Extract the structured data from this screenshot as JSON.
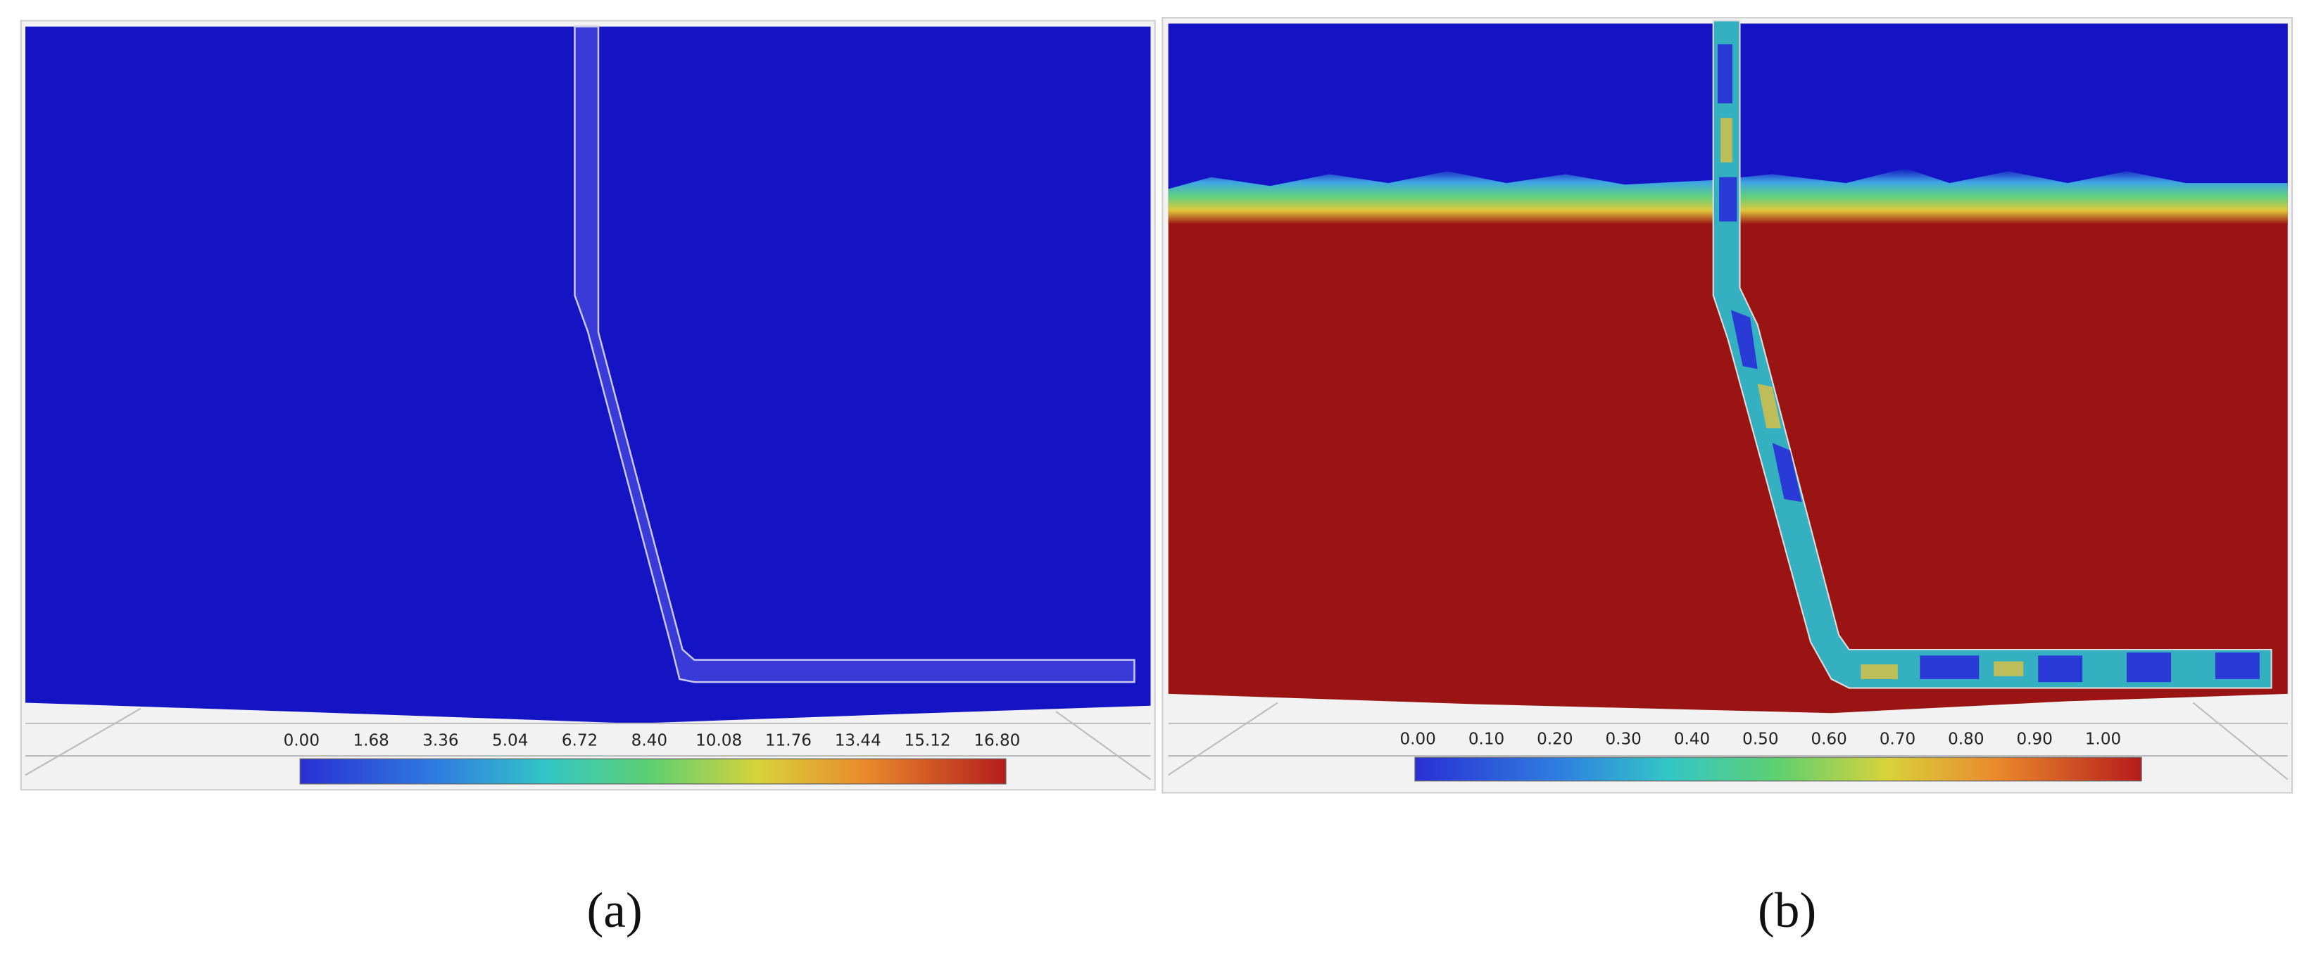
{
  "panels": [
    {
      "caption": "(a)",
      "colorbar_labels": [
        "0.00",
        "1.68",
        "3.36",
        "5.04",
        "6.72",
        "8.40",
        "10.08",
        "11.76",
        "13.44",
        "15.12",
        "16.80"
      ]
    },
    {
      "caption": "(b)",
      "colorbar_labels": [
        "0.00",
        "0.10",
        "0.20",
        "0.30",
        "0.40",
        "0.50",
        "0.60",
        "0.70",
        "0.80",
        "0.90",
        "1.00"
      ]
    }
  ]
}
